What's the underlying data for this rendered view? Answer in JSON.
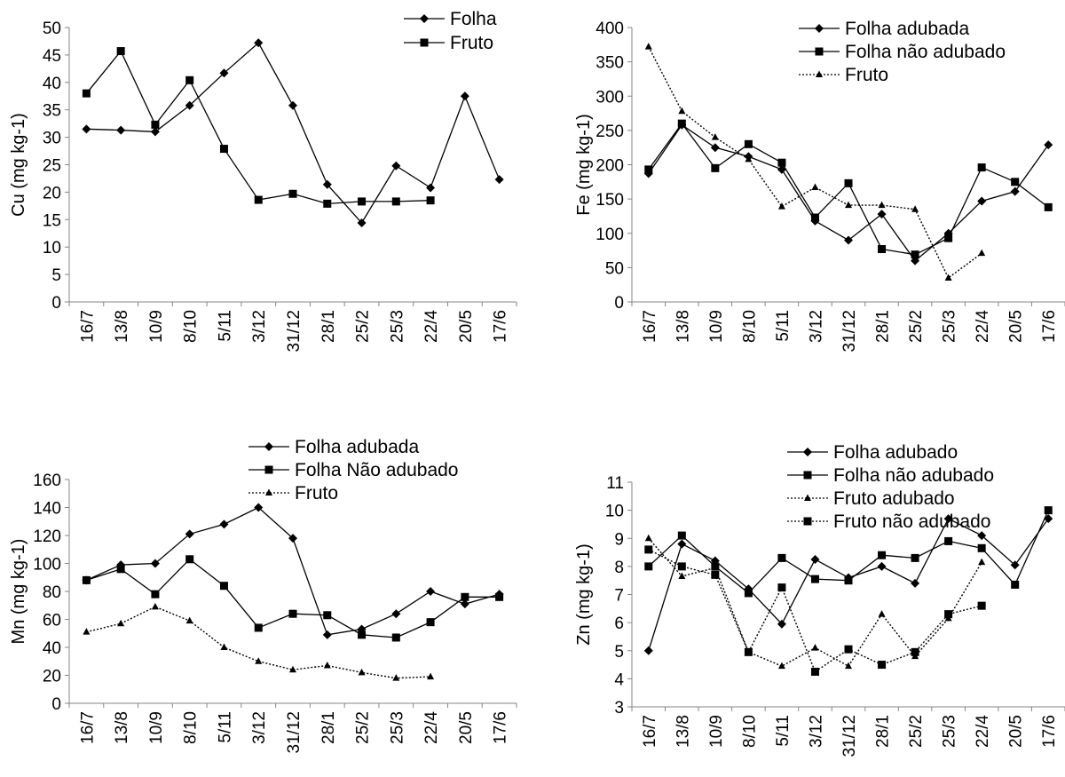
{
  "chart_data": [
    {
      "type": "line",
      "title": "",
      "xlabel": "",
      "ylabel": "Cu (mg kg-1)",
      "ylim": [
        0,
        50
      ],
      "yticks": [
        0,
        5,
        10,
        15,
        20,
        25,
        30,
        35,
        40,
        45,
        50
      ],
      "categories": [
        "16/7",
        "13/8",
        "10/9",
        "8/10",
        "5/11",
        "3/12",
        "31/12",
        "28/1",
        "25/2",
        "25/3",
        "22/4",
        "20/5",
        "17/6"
      ],
      "grid": false,
      "legend": "top-right",
      "series": [
        {
          "name": "Folha",
          "marker": "diamond",
          "dash": "solid",
          "x": [
            0,
            1,
            2,
            3,
            4,
            5,
            6,
            7,
            8,
            9,
            10,
            11,
            12
          ],
          "values": [
            31.5,
            31.3,
            31.0,
            35.8,
            41.7,
            47.2,
            35.8,
            21.4,
            14.4,
            24.8,
            20.8,
            37.5,
            22.3
          ]
        },
        {
          "name": "Fruto",
          "marker": "square",
          "dash": "solid",
          "x": [
            0,
            1,
            2,
            3,
            4,
            5,
            6,
            7,
            8,
            9,
            10
          ],
          "values": [
            38.0,
            45.7,
            32.3,
            40.4,
            27.9,
            18.6,
            19.7,
            17.9,
            18.3,
            18.3,
            18.5
          ]
        }
      ]
    },
    {
      "type": "line",
      "title": "",
      "xlabel": "",
      "ylabel": "Fe (mg kg-1)",
      "ylim": [
        0,
        400
      ],
      "yticks": [
        0,
        50,
        100,
        150,
        200,
        250,
        300,
        350,
        400
      ],
      "categories": [
        "16/7",
        "13/8",
        "10/9",
        "8/10",
        "5/11",
        "3/12",
        "31/12",
        "28/1",
        "25/2",
        "25/3",
        "22/4",
        "20/5",
        "17/6"
      ],
      "grid": false,
      "legend": "top-right",
      "series": [
        {
          "name": "Folha adubada",
          "marker": "diamond",
          "dash": "solid",
          "x": [
            0,
            1,
            2,
            3,
            4,
            5,
            6,
            7,
            8,
            9,
            10,
            11,
            12
          ],
          "values": [
            187,
            258,
            225,
            212,
            193,
            118,
            90,
            128,
            60,
            100,
            147,
            161,
            229
          ]
        },
        {
          "name": "Folha não adubado",
          "marker": "square",
          "dash": "solid",
          "x": [
            0,
            1,
            2,
            3,
            4,
            5,
            6,
            7,
            8,
            9,
            10,
            11,
            12
          ],
          "values": [
            193,
            260,
            195,
            230,
            203,
            123,
            173,
            77,
            69,
            93,
            196,
            175,
            138
          ]
        },
        {
          "name": "Fruto",
          "marker": "triangle",
          "dash": "dotted",
          "x": [
            0,
            1,
            2,
            3,
            4,
            5,
            6,
            7,
            8,
            9,
            10
          ],
          "values": [
            372,
            278,
            240,
            208,
            139,
            167,
            141,
            141,
            135,
            35,
            71
          ]
        }
      ]
    },
    {
      "type": "line",
      "title": "",
      "xlabel": "",
      "ylabel": "Mn (mg kg-1)",
      "ylim": [
        0,
        160
      ],
      "yticks": [
        0,
        20,
        40,
        60,
        80,
        100,
        120,
        140,
        160
      ],
      "categories": [
        "16/7",
        "13/8",
        "10/9",
        "8/10",
        "5/11",
        "3/12",
        "31/12",
        "28/1",
        "25/2",
        "25/3",
        "22/4",
        "20/5",
        "17/6"
      ],
      "grid": false,
      "legend": "top-right",
      "series": [
        {
          "name": "Folha adubada",
          "marker": "diamond",
          "dash": "solid",
          "x": [
            0,
            1,
            2,
            3,
            4,
            5,
            6,
            7,
            8,
            9,
            10,
            11,
            12
          ],
          "values": [
            88,
            99,
            100,
            121,
            128,
            140,
            118,
            49,
            53,
            64,
            80,
            71,
            78
          ]
        },
        {
          "name": "Folha Não adubado",
          "marker": "square",
          "dash": "solid",
          "x": [
            0,
            1,
            2,
            3,
            4,
            5,
            6,
            7,
            8,
            9,
            10,
            11,
            12
          ],
          "values": [
            88,
            96,
            78,
            103,
            84,
            54,
            64,
            63,
            49,
            47,
            58,
            76,
            76
          ]
        },
        {
          "name": "Fruto",
          "marker": "triangle",
          "dash": "dotted",
          "x": [
            0,
            1,
            2,
            3,
            4,
            5,
            6,
            7,
            8,
            9,
            10
          ],
          "values": [
            51,
            57,
            69,
            59,
            40,
            30,
            24,
            27,
            22,
            18,
            19
          ]
        }
      ]
    },
    {
      "type": "line",
      "title": "",
      "xlabel": "",
      "ylabel": "Zn (mg kg-1)",
      "ylim": [
        3,
        11
      ],
      "yticks": [
        3,
        4,
        5,
        6,
        7,
        8,
        9,
        10,
        11
      ],
      "categories": [
        "16/7",
        "13/8",
        "10/9",
        "8/10",
        "5/11",
        "3/12",
        "31/12",
        "28/1",
        "25/2",
        "25/3",
        "22/4",
        "20/5",
        "17/6"
      ],
      "grid": false,
      "legend": "top-right",
      "series": [
        {
          "name": "Folha adubado",
          "marker": "diamond",
          "dash": "solid",
          "x": [
            0,
            1,
            2,
            3,
            4,
            5,
            6,
            7,
            8,
            9,
            10,
            11,
            12
          ],
          "values": [
            5.0,
            8.8,
            8.2,
            7.2,
            5.95,
            8.25,
            7.6,
            8.0,
            7.4,
            9.7,
            9.1,
            8.05,
            9.7
          ]
        },
        {
          "name": "Folha não adubado",
          "marker": "square",
          "dash": "solid",
          "x": [
            0,
            1,
            2,
            3,
            4,
            5,
            6,
            7,
            8,
            9,
            10,
            11,
            12
          ],
          "values": [
            8.0,
            9.1,
            8.0,
            7.05,
            8.3,
            7.55,
            7.5,
            8.4,
            8.3,
            8.9,
            8.65,
            7.35,
            10.0
          ]
        },
        {
          "name": "Fruto adubado",
          "marker": "triangle",
          "dash": "dotted",
          "x": [
            0,
            1,
            2,
            3,
            4,
            5,
            6,
            7,
            8,
            9,
            10
          ],
          "values": [
            9.0,
            7.65,
            7.95,
            4.95,
            4.45,
            5.1,
            4.45,
            6.3,
            4.8,
            6.15,
            8.15
          ]
        },
        {
          "name": "Fruto não adubado",
          "marker": "square",
          "dash": "dotted",
          "x": [
            0,
            1,
            2,
            3,
            4,
            5,
            6,
            7,
            8,
            9,
            10
          ],
          "values": [
            8.6,
            8.0,
            7.7,
            4.95,
            7.25,
            4.25,
            5.05,
            4.5,
            4.95,
            6.3,
            6.6
          ]
        }
      ]
    }
  ]
}
